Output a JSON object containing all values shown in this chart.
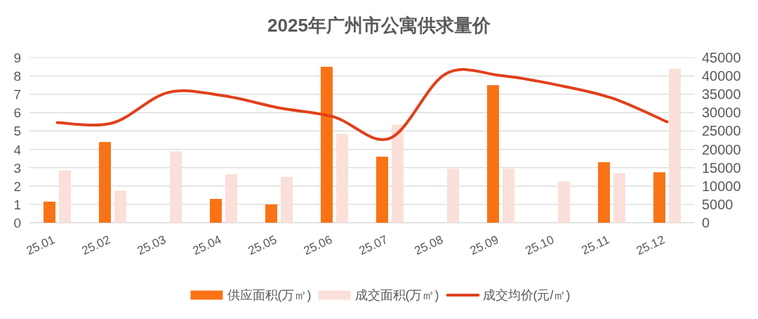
{
  "chart_data": {
    "type": "bar",
    "title": "2025年广州市公寓供求量价",
    "categories": [
      "25.01",
      "25.02",
      "25.03",
      "25.04",
      "25.05",
      "25.06",
      "25.07",
      "25.08",
      "25.09",
      "25.10",
      "25.11",
      "25.12"
    ],
    "series": [
      {
        "name": "供应面积(万㎡)",
        "color": "#f97316",
        "values": [
          1.15,
          4.4,
          null,
          1.3,
          1.0,
          8.5,
          3.6,
          null,
          7.5,
          null,
          3.3,
          2.75
        ]
      },
      {
        "name": "成交面积(万㎡)",
        "color": "#fae0d9",
        "values": [
          2.85,
          1.75,
          3.9,
          2.65,
          2.5,
          4.85,
          5.35,
          2.95,
          2.95,
          2.25,
          2.7,
          8.4
        ]
      },
      {
        "name": "成交均价(元/㎡)",
        "type": "line",
        "axis": "y2",
        "color": "#e0401b",
        "values": [
          27300,
          27200,
          35500,
          34600,
          31300,
          28800,
          23000,
          40500,
          40100,
          37600,
          34000,
          27500
        ]
      }
    ],
    "ylim": [
      0,
      9
    ],
    "yticks": [
      0,
      1,
      2,
      3,
      4,
      5,
      6,
      7,
      8,
      9
    ],
    "y2lim": [
      0,
      45000
    ],
    "y2ticks": [
      0,
      5000,
      10000,
      15000,
      20000,
      25000,
      30000,
      35000,
      40000,
      45000
    ],
    "grid": "y",
    "legend": "bottom"
  }
}
